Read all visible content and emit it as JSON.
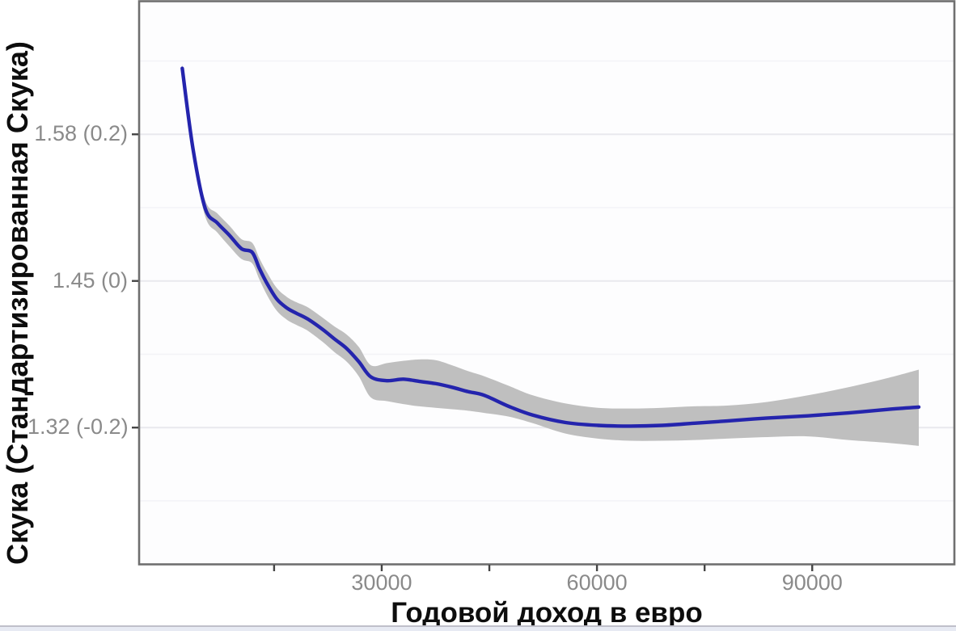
{
  "figure": {
    "x_axis_title": "Годовой доход в евро",
    "y_axis_title": "Скука (Стандартизированная Скука)"
  },
  "colors": {
    "line": "#2424ad",
    "ribbon": "#bfbfbf",
    "grid_major": "#e9e9ee",
    "grid_minor": "#f3f3f7",
    "panel_background": "#fdfdfe",
    "panel_border": "#6f6f6f",
    "tick_mark": "#454545",
    "tick_text": "#8a8a8a",
    "title_text": "#0d0d0d"
  },
  "chart_data": {
    "type": "line",
    "title": "",
    "xlabel": "Годовой доход в евро",
    "ylabel": "Скука (Стандартизированная Скука)",
    "legend": "none",
    "grid": "horizontal_only",
    "smoother": "loess_mean_with_confidence_ribbon",
    "xlim": [
      -3700,
      109700
    ],
    "ylim_std": [
      -0.386,
      0.381
    ],
    "x_ticks_labeled": [
      {
        "value": 30000,
        "label": "30000"
      },
      {
        "value": 60000,
        "label": "60000"
      },
      {
        "value": 90000,
        "label": "90000"
      }
    ],
    "x_ticks_unlabeled": [
      15000,
      45000,
      75000
    ],
    "y_ticks": [
      {
        "label": "1.58 (0.2)",
        "raw": 1.58,
        "std": 0.2
      },
      {
        "label": "1.45 (0)",
        "raw": 1.45,
        "std": 0.0
      },
      {
        "label": "1.32 (-0.2)",
        "raw": 1.32,
        "std": -0.2
      }
    ],
    "y_gridlines_minor_std": [
      0.3,
      0.1,
      -0.1,
      -0.3
    ],
    "series": [
      {
        "name": "smoothed_boredom_vs_income",
        "units": "income_eur, std_mean, ci_lower, ci_upper",
        "points": [
          [
            2200,
            0.29,
            0.283,
            0.296
          ],
          [
            3700,
            0.18,
            0.172,
            0.187
          ],
          [
            5400,
            0.099,
            0.088,
            0.11
          ],
          [
            7100,
            0.079,
            0.066,
            0.092
          ],
          [
            8800,
            0.062,
            0.047,
            0.075
          ],
          [
            10450,
            0.044,
            0.03,
            0.057
          ],
          [
            11950,
            0.039,
            0.024,
            0.052
          ],
          [
            12950,
            0.017,
            0.002,
            0.031
          ],
          [
            14050,
            -0.004,
            -0.02,
            0.011
          ],
          [
            15400,
            -0.025,
            -0.041,
            -0.01
          ],
          [
            16800,
            -0.037,
            -0.053,
            -0.022
          ],
          [
            18100,
            -0.044,
            -0.06,
            -0.029
          ],
          [
            19700,
            -0.052,
            -0.068,
            -0.036
          ],
          [
            21750,
            -0.066,
            -0.083,
            -0.05
          ],
          [
            23400,
            -0.079,
            -0.097,
            -0.062
          ],
          [
            25100,
            -0.092,
            -0.11,
            -0.073
          ],
          [
            26800,
            -0.11,
            -0.13,
            -0.09
          ],
          [
            28500,
            -0.131,
            -0.159,
            -0.115
          ],
          [
            30750,
            -0.136,
            -0.164,
            -0.112
          ],
          [
            33000,
            -0.134,
            -0.168,
            -0.109
          ],
          [
            35250,
            -0.137,
            -0.171,
            -0.107
          ],
          [
            37500,
            -0.14,
            -0.173,
            -0.108
          ],
          [
            39800,
            -0.145,
            -0.175,
            -0.115
          ],
          [
            42050,
            -0.151,
            -0.177,
            -0.123
          ],
          [
            44300,
            -0.156,
            -0.18,
            -0.13
          ],
          [
            47700,
            -0.171,
            -0.185,
            -0.143
          ],
          [
            51050,
            -0.183,
            -0.194,
            -0.156
          ],
          [
            55550,
            -0.193,
            -0.208,
            -0.167
          ],
          [
            60100,
            -0.197,
            -0.215,
            -0.173
          ],
          [
            64600,
            -0.198,
            -0.218,
            -0.174
          ],
          [
            69100,
            -0.197,
            -0.218,
            -0.173
          ],
          [
            73600,
            -0.194,
            -0.217,
            -0.171
          ],
          [
            78100,
            -0.191,
            -0.215,
            -0.17
          ],
          [
            83750,
            -0.187,
            -0.213,
            -0.165
          ],
          [
            89400,
            -0.184,
            -0.212,
            -0.156
          ],
          [
            95050,
            -0.18,
            -0.217,
            -0.145
          ],
          [
            100700,
            -0.175,
            -0.221,
            -0.132
          ],
          [
            104850,
            -0.172,
            -0.225,
            -0.121
          ]
        ]
      }
    ]
  }
}
